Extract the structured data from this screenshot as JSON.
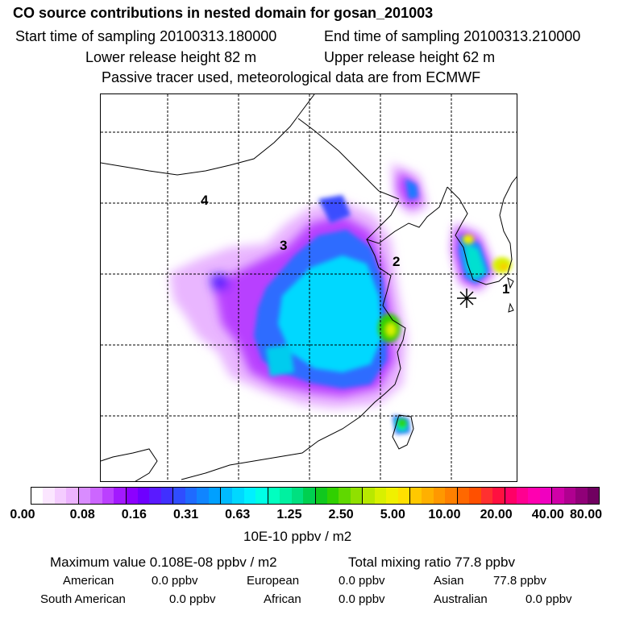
{
  "header": {
    "title": "CO  source contributions in nested domain for gosan_201003",
    "start_label": "Start time of sampling 20100313.180000",
    "end_label": "End time of sampling 20100313.210000",
    "lower_label": "Lower release height   82 m",
    "upper_label": "Upper release height   62 m",
    "note": "Passive tracer used, meteorological data are from ECMWF"
  },
  "map": {
    "region_labels": [
      "1",
      "2",
      "3",
      "4"
    ],
    "receptor_marker": "asterisk-icon",
    "gridlines": "dashed"
  },
  "colorbar": {
    "tick_labels": [
      "0.00",
      "0.08",
      "0.16",
      "0.31",
      "0.63",
      "1.25",
      "2.50",
      "5.00",
      "10.00",
      "20.00",
      "40.00",
      "80.00"
    ],
    "unit": "10E-10 ppbv / m2",
    "colors": [
      "#ffffff",
      "#fbe6ff",
      "#f4ccff",
      "#ecb3ff",
      "#d98cff",
      "#cc66ff",
      "#bb40ff",
      "#a319ff",
      "#8c00ff",
      "#6e00ff",
      "#5a1aff",
      "#4030ff",
      "#2f4dff",
      "#1f6aff",
      "#1085ff",
      "#00a0ff",
      "#00bbff",
      "#00d8ff",
      "#00f0ff",
      "#00ffe6",
      "#00ffc0",
      "#00f0a0",
      "#00e080",
      "#00d050",
      "#10c81e",
      "#30d000",
      "#60d800",
      "#90e000",
      "#b8e800",
      "#d8f000",
      "#f0f000",
      "#ffe000",
      "#ffc800",
      "#ffb000",
      "#ff9800",
      "#ff8000",
      "#ff6800",
      "#ff5000",
      "#ff3030",
      "#ff1040",
      "#ff0066",
      "#ff0090",
      "#ff00b0",
      "#f000c0",
      "#d000a8",
      "#b00090",
      "#900078",
      "#700060"
    ]
  },
  "footer": {
    "max_label": "Maximum value  0.108E-08 ppbv / m2",
    "total_label": "Total mixing ratio       77.8 ppbv",
    "regions": [
      {
        "name": "American",
        "value": "0.0 ppbv"
      },
      {
        "name": "European",
        "value": "0.0 ppbv"
      },
      {
        "name": "Asian",
        "value": "77.8 ppbv"
      },
      {
        "name": "South American",
        "value": "0.0 ppbv"
      },
      {
        "name": "African",
        "value": "0.0 ppbv"
      },
      {
        "name": "Australian",
        "value": "0.0 ppbv"
      }
    ]
  }
}
